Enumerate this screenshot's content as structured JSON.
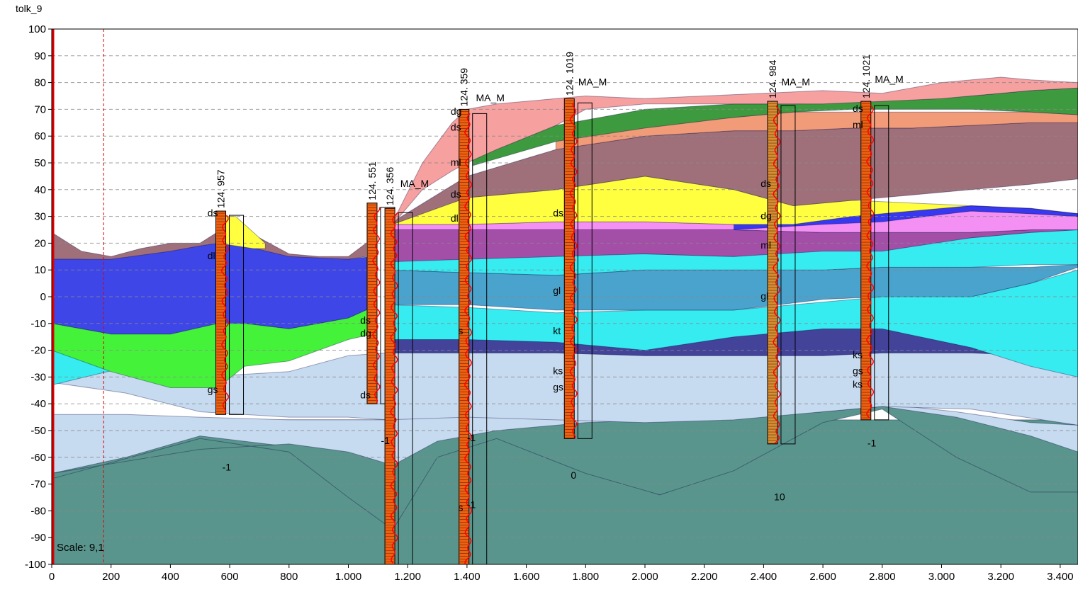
{
  "chart_data": {
    "type": "area",
    "title": "tolk_9",
    "xlabel": "",
    "ylabel": "",
    "xlim": [
      0,
      3460
    ],
    "ylim": [
      -100,
      100
    ],
    "x_ticks": [
      0,
      200,
      400,
      600,
      800,
      1000,
      1200,
      1400,
      1600,
      1800,
      2000,
      2200,
      2400,
      2600,
      2800,
      3000,
      3200,
      3400
    ],
    "x_tick_labels": [
      "0",
      "200",
      "400",
      "600",
      "800",
      "1.000",
      "1.200",
      "1.400",
      "1.600",
      "1.800",
      "2.000",
      "2.200",
      "2.400",
      "2.600",
      "2.800",
      "3.000",
      "3.200",
      "3.400"
    ],
    "y_ticks": [
      100,
      90,
      80,
      70,
      60,
      50,
      40,
      30,
      20,
      10,
      0,
      -10,
      -20,
      -30,
      -40,
      -50,
      -60,
      -70,
      -80,
      -90,
      -100
    ],
    "y_tick_labels": [
      "100",
      "90",
      "80",
      "70",
      "60",
      "50",
      "40",
      "30",
      "20",
      "10",
      "0",
      "-10",
      "-20",
      "-30",
      "-40",
      "-50",
      "-60",
      "-70",
      "-80",
      "-90",
      "-100"
    ],
    "grid": "horizontal-dashed",
    "scale_label": "Scale: 9,1",
    "reference_lines": [
      {
        "x": 0,
        "color": "#e00000",
        "style": "solid"
      },
      {
        "x": 175,
        "color": "#e00000",
        "style": "dashed"
      }
    ],
    "layers": [
      {
        "color": "#5a958d",
        "x": [
          0,
          3460
        ],
        "top": [
          -46,
          -46
        ],
        "bottom": [
          -100,
          -100
        ]
      },
      {
        "color": "#c6daf0",
        "x": [
          0,
          250,
          500,
          800,
          1000,
          1150,
          1300,
          1500,
          1800,
          2050,
          2300,
          2600,
          2800,
          3050,
          3300,
          3460
        ],
        "top": [
          -44,
          -44,
          -45,
          -46,
          -46,
          -46,
          -44,
          -43,
          -46,
          -47,
          -47,
          -43,
          -40,
          -43,
          -47,
          -48
        ],
        "bottom": [
          -66,
          -60,
          -52,
          -56,
          -73,
          -85,
          -58,
          -52,
          -65,
          -74,
          -64,
          -46,
          -41,
          -58,
          -72,
          -72
        ]
      },
      {
        "color": "#5a958d",
        "x": [
          0,
          500,
          800,
          1000,
          1150,
          1300,
          1500,
          1800,
          2050,
          2300,
          2600,
          2800,
          3050,
          3300,
          3460
        ],
        "top": [
          -66,
          -57,
          -55,
          -58,
          -63,
          -54,
          -50,
          -47,
          -46,
          -45,
          -43,
          -41,
          -45,
          -52,
          -58
        ],
        "bottom": [
          -68,
          -53,
          -58,
          -75,
          -87,
          -60,
          -53,
          -66,
          -74,
          -65,
          -47,
          -42,
          -60,
          -73,
          -73
        ]
      },
      {
        "color": "#c6daf0",
        "x": [
          0,
          250,
          500,
          800,
          1000,
          1130,
          1400,
          1700,
          2000,
          2300,
          2600,
          2800,
          3100,
          3460
        ],
        "top": [
          -22,
          -25,
          -30,
          -28,
          -22,
          -21,
          -21,
          -21,
          -22,
          -22,
          -22,
          -21,
          -21,
          -22
        ],
        "bottom": [
          -32,
          -36,
          -43,
          -45,
          -45,
          -46,
          -45,
          -46,
          -47,
          -46,
          -43,
          -41,
          -42,
          -48
        ]
      },
      {
        "color": "#43439a",
        "x": [
          1130,
          1400,
          1700,
          2000,
          2300,
          2600,
          2800,
          3100,
          3300,
          3460
        ],
        "top": [
          -15,
          -14,
          -15,
          -20,
          -13,
          -12,
          -12,
          -11,
          -13,
          -14
        ],
        "bottom": [
          -21,
          -21,
          -21,
          -22,
          -22,
          -22,
          -21,
          -21,
          -22,
          -22
        ]
      },
      {
        "color": "#36ecf0",
        "x": [
          0,
          150,
          300,
          400
        ],
        "top": [
          -17,
          -20,
          -22,
          -23
        ],
        "bottom": [
          -33,
          -29,
          -25,
          -23
        ]
      },
      {
        "color": "#36ecf0",
        "x": [
          1130,
          1400,
          1700,
          2000,
          2300,
          2600,
          2800,
          3100,
          3300,
          3460
        ],
        "top": [
          -3,
          -4,
          -6,
          -5,
          -5,
          -2,
          0,
          0,
          5,
          10
        ],
        "bottom": [
          -16,
          -16,
          -17,
          -20,
          -15,
          -12,
          -12,
          -19,
          -26,
          -30
        ]
      },
      {
        "color": "#4aa3cd",
        "x": [
          1130,
          1400,
          1700,
          2000,
          2300,
          2600,
          2800,
          3100,
          3300,
          3460
        ],
        "top": [
          10,
          9,
          8,
          10,
          10,
          10,
          11,
          11,
          11,
          12
        ],
        "bottom": [
          -3,
          -3,
          -5,
          -5,
          -5,
          -1,
          0,
          0,
          5,
          11
        ]
      },
      {
        "color": "#36ecf0",
        "x": [
          1130,
          1400,
          1700,
          2000,
          2300,
          2600,
          2800,
          3100,
          3300,
          3460
        ],
        "top": [
          13,
          15,
          16,
          16,
          15,
          18,
          18,
          22,
          24,
          25
        ],
        "bottom": [
          10,
          9,
          8,
          10,
          10,
          10,
          11,
          11,
          12,
          12
        ]
      },
      {
        "color": "#a34fa8",
        "x": [
          1130,
          1400,
          1700,
          2000,
          2300,
          2600,
          2800,
          3100,
          3300,
          3460
        ],
        "top": [
          25,
          25,
          25,
          25,
          25,
          24,
          24,
          24,
          25,
          25
        ],
        "bottom": [
          13,
          14,
          15,
          16,
          15,
          17,
          17,
          22,
          24,
          25
        ]
      },
      {
        "color": "#f48ff4",
        "x": [
          1130,
          1400,
          1700,
          2000,
          2300,
          2600,
          2800,
          3100,
          3300,
          3460
        ],
        "top": [
          27,
          27,
          28,
          28,
          27,
          28,
          29,
          32,
          31,
          30
        ],
        "bottom": [
          25,
          25,
          25,
          25,
          25,
          24,
          24,
          24,
          25,
          25
        ]
      },
      {
        "color": "#3838f0",
        "x": [
          2300,
          2600,
          2800,
          3100,
          3300,
          3460
        ],
        "top": [
          27,
          30,
          32,
          34,
          33,
          31
        ],
        "bottom": [
          25,
          27,
          28,
          32,
          31,
          30
        ]
      },
      {
        "color": "#ffff3f",
        "x": [
          1130,
          1400,
          1700,
          2000,
          2300,
          2500,
          2700,
          2900,
          3100,
          3300,
          3460
        ],
        "top": [
          27,
          37,
          40,
          45,
          40,
          34,
          36,
          35,
          34,
          33,
          31
        ],
        "bottom": [
          27,
          27,
          28,
          28,
          27,
          27,
          30,
          32,
          34,
          33,
          31
        ]
      },
      {
        "color": "#a0707a",
        "x": [
          1150,
          1400,
          1700,
          2000,
          2300,
          2500,
          2700,
          2900,
          3100,
          3300,
          3460
        ],
        "top": [
          28,
          45,
          55,
          60,
          62,
          62,
          63,
          63,
          64,
          65,
          65
        ],
        "bottom": [
          27,
          37,
          40,
          45,
          40,
          34,
          36,
          38,
          40,
          42,
          44
        ]
      },
      {
        "color": "#f29b78",
        "x": [
          1700,
          2000,
          2300,
          2500,
          2700,
          2900,
          3100,
          3300,
          3460
        ],
        "top": [
          60,
          64,
          67,
          69,
          69,
          69,
          69,
          69,
          68
        ],
        "bottom": [
          55,
          60,
          62,
          62,
          63,
          63,
          64,
          65,
          65
        ]
      },
      {
        "color": "#3e9a3e",
        "x": [
          1420,
          1700,
          2000,
          2300,
          2500,
          2700,
          2900,
          3100,
          3300,
          3460
        ],
        "top": [
          53,
          64,
          70,
          72,
          72,
          73,
          74,
          75,
          77,
          78
        ],
        "bottom": [
          49,
          58,
          63,
          67,
          69,
          70,
          70,
          70,
          69,
          68
        ]
      },
      {
        "color": "#f6a0a0",
        "x": [
          1150,
          1250,
          1350,
          1400,
          1500,
          1700,
          1800,
          2000,
          2200,
          2400,
          2600,
          2800,
          3000,
          3200,
          3300,
          3460
        ],
        "top": [
          28,
          50,
          65,
          70,
          72,
          74,
          75,
          74,
          75,
          76,
          77,
          76,
          80,
          82,
          81,
          80
        ],
        "bottom": [
          27,
          40,
          47,
          50,
          55,
          64,
          70,
          72,
          72,
          72,
          72,
          73,
          74,
          76,
          77,
          78
        ]
      },
      {
        "color": "#a0707a",
        "x": [
          0,
          100,
          200,
          300,
          400,
          500,
          600,
          700,
          800,
          900,
          1000,
          1060
        ],
        "top": [
          24,
          17,
          15,
          18,
          20,
          20,
          27,
          22,
          16,
          15,
          15,
          20
        ],
        "bottom": [
          14,
          14,
          13,
          13,
          14,
          15,
          20,
          16,
          14,
          13,
          14,
          15
        ]
      },
      {
        "color": "#3e46e8",
        "x": [
          0,
          200,
          400,
          500,
          560,
          650,
          800,
          1000,
          1080
        ],
        "top": [
          14,
          14,
          17,
          19,
          20,
          19,
          15,
          14,
          15
        ],
        "bottom": [
          -10,
          -14,
          -14,
          -12,
          -10,
          -10,
          -12,
          -8,
          -4
        ]
      },
      {
        "color": "#45f23a",
        "x": [
          0,
          200,
          400,
          560,
          650,
          800,
          1000,
          1080
        ],
        "top": [
          -10,
          -14,
          -14,
          -10,
          -10,
          -12,
          -8,
          -4
        ],
        "bottom": [
          -20,
          -28,
          -34,
          -34,
          -26,
          -24,
          -16,
          -14
        ]
      },
      {
        "color": "#ffff3f",
        "x": [
          560,
          620,
          680,
          720
        ],
        "top": [
          30,
          30,
          24,
          20
        ],
        "bottom": [
          20,
          19,
          18,
          18
        ]
      }
    ],
    "boreholes": [
      {
        "x": 570,
        "top": 32,
        "bottom": -44,
        "color": "#f06010",
        "label": "124. 957"
      },
      {
        "x": 1080,
        "top": 35,
        "bottom": -40,
        "color": "#f06010",
        "label": "124. 551"
      },
      {
        "x": 1140,
        "top": 33,
        "bottom": -100,
        "color": "#f06010",
        "label": "124. 356"
      },
      {
        "x": 1390,
        "top": 70,
        "bottom": -100,
        "color": "#f06010",
        "label": "124. 359"
      },
      {
        "x": 1745,
        "top": 74,
        "bottom": -53,
        "color": "#f06010",
        "label": "124. 1019"
      },
      {
        "x": 2430,
        "top": 73,
        "bottom": -55,
        "color": "#d98c30",
        "label": "124. 984"
      },
      {
        "x": 2745,
        "top": 73,
        "bottom": -46,
        "color": "#f06010",
        "label": "124. 1021"
      }
    ],
    "annotations": [
      {
        "text": "MA_M",
        "x": 1175,
        "y": 41
      },
      {
        "text": "MA_M",
        "x": 1430,
        "y": 73
      },
      {
        "text": "MA_M",
        "x": 1775,
        "y": 79
      },
      {
        "text": "MA_M",
        "x": 2460,
        "y": 79
      },
      {
        "text": "MA_M",
        "x": 2775,
        "y": 80
      },
      {
        "text": "dg",
        "x": 1345,
        "y": 68
      },
      {
        "text": "ds",
        "x": 1345,
        "y": 62
      },
      {
        "text": "ml",
        "x": 1345,
        "y": 49
      },
      {
        "text": "ds",
        "x": 1345,
        "y": 37
      },
      {
        "text": "dl",
        "x": 1345,
        "y": 28
      },
      {
        "text": "s",
        "x": 1370,
        "y": -14
      },
      {
        "text": "s",
        "x": 1370,
        "y": -80
      },
      {
        "text": "ds",
        "x": 2390,
        "y": 41
      },
      {
        "text": "dg",
        "x": 2390,
        "y": 29
      },
      {
        "text": "ml",
        "x": 2390,
        "y": 18
      },
      {
        "text": "gl",
        "x": 2390,
        "y": -1
      },
      {
        "text": "ds",
        "x": 2700,
        "y": 69
      },
      {
        "text": "ml",
        "x": 2700,
        "y": 63
      },
      {
        "text": "ds",
        "x": 1040,
        "y": -38
      },
      {
        "text": "dg",
        "x": 1040,
        "y": -15
      },
      {
        "text": "ds",
        "x": 1040,
        "y": -10
      },
      {
        "text": "ds",
        "x": 1690,
        "y": 30
      },
      {
        "text": "gl",
        "x": 1690,
        "y": 1
      },
      {
        "text": "ks",
        "x": 1690,
        "y": -29
      },
      {
        "text": "gs",
        "x": 1690,
        "y": -35
      },
      {
        "text": "kt",
        "x": 1690,
        "y": -14
      },
      {
        "text": "ks",
        "x": 2700,
        "y": -23
      },
      {
        "text": "gs",
        "x": 2700,
        "y": -29
      },
      {
        "text": "ks",
        "x": 2700,
        "y": -34
      },
      {
        "text": "gs",
        "x": 525,
        "y": -36
      },
      {
        "text": "ds",
        "x": 525,
        "y": 30
      },
      {
        "text": "dl",
        "x": 525,
        "y": 14
      },
      {
        "text": "-1",
        "x": 575,
        "y": -65
      },
      {
        "text": "-1",
        "x": 1110,
        "y": -55
      },
      {
        "text": "0",
        "x": 1750,
        "y": -68
      },
      {
        "text": "10",
        "x": 2435,
        "y": -76
      },
      {
        "text": "-1",
        "x": 2750,
        "y": -56
      },
      {
        "text": "-1",
        "x": 1400,
        "y": -54
      },
      {
        "text": "-1",
        "x": 1400,
        "y": -79
      }
    ]
  }
}
